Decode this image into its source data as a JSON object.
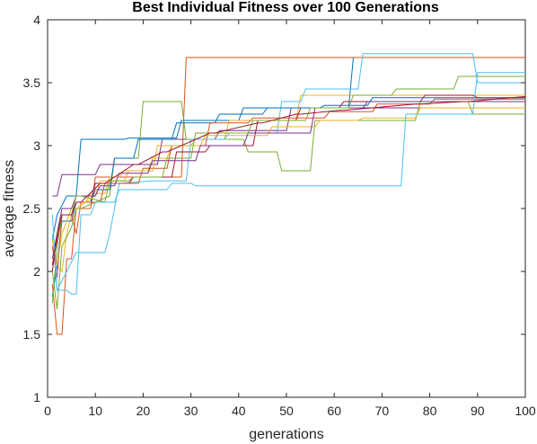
{
  "chart_data": {
    "type": "line",
    "title": "Best Individual Fitness over 100 Generations",
    "xlabel": "generations",
    "ylabel": "average fitness",
    "xlim": [
      0,
      100
    ],
    "ylim": [
      1,
      4
    ],
    "xticks": [
      0,
      10,
      20,
      30,
      40,
      50,
      60,
      70,
      80,
      90,
      100
    ],
    "yticks": [
      1,
      1.5,
      2,
      2.5,
      3,
      3.5,
      4
    ],
    "xtick_labels": [
      "0",
      "10",
      "20",
      "30",
      "40",
      "50",
      "60",
      "70",
      "80",
      "90",
      "100"
    ],
    "ytick_labels": [
      "1",
      "1.5",
      "2",
      "2.5",
      "3",
      "3.5",
      "4"
    ],
    "grid": false,
    "colors": [
      "#0072BD",
      "#D95319",
      "#EDB120",
      "#7E2F8E",
      "#77AC30",
      "#4DBEEE",
      "#A2142F"
    ],
    "series": [
      {
        "x": [
          1,
          2,
          4,
          6,
          7,
          16,
          17,
          27,
          28,
          40,
          41,
          63,
          64,
          100
        ],
        "y": [
          2.25,
          2.45,
          2.6,
          2.6,
          3.05,
          3.05,
          3.06,
          3.06,
          3.2,
          3.2,
          3.3,
          3.3,
          3.7,
          3.7
        ]
      },
      {
        "x": [
          1,
          2,
          3,
          4,
          5,
          6,
          9,
          10,
          28,
          29,
          100
        ],
        "y": [
          1.9,
          1.5,
          1.5,
          2.1,
          2.1,
          2.5,
          2.5,
          2.75,
          2.75,
          3.7,
          3.7
        ]
      },
      {
        "x": [
          1,
          2,
          3,
          4,
          5,
          6,
          8,
          9,
          12,
          13,
          15,
          16,
          21,
          22,
          25,
          26,
          30,
          31,
          37,
          38,
          52,
          53,
          100
        ],
        "y": [
          2.2,
          2.05,
          2.0,
          2.3,
          2.45,
          2.55,
          2.55,
          2.62,
          2.62,
          2.75,
          2.75,
          2.8,
          2.8,
          2.9,
          2.9,
          3.0,
          3.0,
          3.05,
          3.05,
          3.2,
          3.2,
          3.4,
          3.4
        ]
      },
      {
        "x": [
          1,
          2,
          3,
          4,
          10,
          11,
          23,
          24,
          35,
          36,
          50,
          51,
          100
        ],
        "y": [
          2.6,
          2.6,
          2.77,
          2.77,
          2.77,
          2.85,
          2.85,
          3.05,
          3.05,
          3.12,
          3.12,
          3.3,
          3.3
        ]
      },
      {
        "x": [
          1,
          2,
          3,
          5,
          6,
          7,
          13,
          14,
          19,
          20,
          28,
          29,
          41,
          42,
          48,
          49,
          55,
          56,
          77,
          78,
          88,
          89,
          100
        ],
        "y": [
          2.0,
          1.7,
          2.2,
          2.35,
          2.5,
          2.5,
          2.6,
          2.9,
          2.9,
          3.35,
          3.35,
          3.05,
          3.05,
          2.95,
          2.95,
          2.8,
          2.8,
          3.2,
          3.2,
          3.35,
          3.35,
          3.25,
          3.25
        ]
      },
      {
        "x": [
          1,
          2,
          4,
          6,
          7,
          12,
          13,
          15,
          22,
          29,
          30,
          37,
          38,
          48,
          49,
          53,
          54,
          65,
          66,
          73,
          74,
          89,
          90,
          100
        ],
        "y": [
          2.3,
          1.85,
          2.0,
          2.15,
          2.15,
          2.15,
          2.3,
          2.7,
          2.72,
          2.72,
          3.05,
          3.05,
          3.1,
          3.1,
          3.35,
          3.35,
          3.45,
          3.45,
          3.73,
          3.73,
          3.73,
          3.73,
          3.5,
          3.5
        ]
      },
      {
        "x": [
          1,
          2,
          3,
          5,
          6,
          9,
          10,
          17,
          18,
          26,
          27,
          33,
          34,
          43,
          44,
          52,
          53,
          61,
          62,
          78,
          79,
          89,
          90,
          100
        ],
        "y": [
          2.05,
          2.25,
          2.45,
          2.45,
          2.55,
          2.55,
          2.7,
          2.7,
          2.75,
          2.75,
          2.95,
          2.95,
          3.0,
          3.0,
          3.2,
          3.2,
          3.3,
          3.3,
          3.35,
          3.35,
          3.4,
          3.4,
          3.38,
          3.38
        ]
      },
      {
        "x": [
          1,
          2,
          3,
          5,
          6,
          9,
          10,
          13,
          14,
          18,
          19,
          26,
          27,
          35,
          36,
          45,
          46,
          57,
          58,
          67,
          68,
          100
        ],
        "y": [
          1.8,
          2.05,
          2.4,
          2.4,
          2.55,
          2.55,
          2.65,
          2.65,
          2.9,
          2.9,
          3.05,
          3.05,
          3.18,
          3.18,
          3.25,
          3.25,
          3.3,
          3.3,
          3.32,
          3.32,
          3.38,
          3.38
        ]
      },
      {
        "x": [
          1,
          2,
          3,
          5,
          6,
          7,
          11,
          12,
          19,
          20,
          25,
          26,
          33,
          34,
          42,
          43,
          58,
          59,
          68,
          69,
          80,
          81,
          100
        ],
        "y": [
          2.2,
          1.95,
          2.45,
          2.45,
          2.3,
          2.55,
          2.55,
          2.7,
          2.7,
          2.82,
          2.82,
          3.0,
          3.0,
          3.18,
          3.18,
          3.22,
          3.22,
          3.27,
          3.27,
          3.33,
          3.33,
          3.37,
          3.37
        ]
      },
      {
        "x": [
          1,
          2,
          3,
          5,
          6,
          10,
          11,
          16,
          17,
          22,
          23,
          32,
          33,
          46,
          47,
          56,
          57,
          65,
          66,
          77,
          78,
          100
        ],
        "y": [
          2.25,
          2.05,
          2.3,
          2.5,
          2.5,
          2.6,
          2.72,
          2.72,
          2.8,
          2.8,
          3.0,
          3.0,
          3.08,
          3.08,
          3.15,
          3.15,
          3.2,
          3.2,
          3.22,
          3.22,
          3.3,
          3.3
        ]
      },
      {
        "x": [
          1,
          2,
          3,
          5,
          6,
          10,
          11,
          14,
          15,
          21,
          22,
          31,
          32,
          41,
          42,
          55,
          56,
          66,
          67,
          80,
          81,
          100
        ],
        "y": [
          2.1,
          2.3,
          2.5,
          2.5,
          2.6,
          2.6,
          2.68,
          2.68,
          2.78,
          2.78,
          2.88,
          2.88,
          3.0,
          3.0,
          3.1,
          3.1,
          3.3,
          3.3,
          3.35,
          3.35,
          3.35,
          3.35
        ]
      },
      {
        "x": [
          1,
          2,
          3,
          5,
          6,
          7,
          12,
          13,
          17,
          18,
          24,
          25,
          30,
          31,
          42,
          43,
          54,
          55,
          63,
          64,
          72,
          73,
          85,
          86,
          100
        ],
        "y": [
          1.75,
          2.2,
          2.45,
          2.45,
          2.6,
          2.6,
          2.55,
          2.72,
          2.72,
          2.75,
          2.75,
          2.9,
          2.9,
          3.1,
          3.1,
          3.2,
          3.2,
          3.3,
          3.3,
          3.4,
          3.4,
          3.45,
          3.45,
          3.55,
          3.55
        ]
      },
      {
        "x": [
          1,
          2,
          4,
          5,
          6,
          7,
          9,
          10,
          14,
          15,
          25,
          26,
          30,
          31,
          51,
          52,
          74,
          75,
          89,
          90,
          100
        ],
        "y": [
          2.45,
          1.85,
          1.85,
          1.82,
          1.82,
          2.45,
          2.45,
          2.55,
          2.55,
          2.65,
          2.65,
          2.7,
          2.7,
          2.68,
          2.68,
          2.68,
          2.68,
          3.25,
          3.25,
          3.58,
          3.58
        ]
      },
      {
        "x": [
          1,
          2,
          3,
          5,
          6,
          7,
          11,
          12,
          18,
          19,
          24,
          25,
          34,
          35,
          44,
          45,
          52,
          53,
          61,
          62,
          77,
          78,
          87,
          88,
          100
        ],
        "y": [
          2.0,
          2.3,
          2.45,
          2.45,
          2.55,
          2.55,
          2.7,
          2.7,
          2.85,
          2.85,
          2.95,
          2.95,
          3.1,
          3.1,
          3.18,
          3.18,
          3.25,
          3.25,
          3.28,
          3.28,
          3.33,
          3.33,
          3.35,
          3.35,
          3.39
        ]
      }
    ]
  }
}
